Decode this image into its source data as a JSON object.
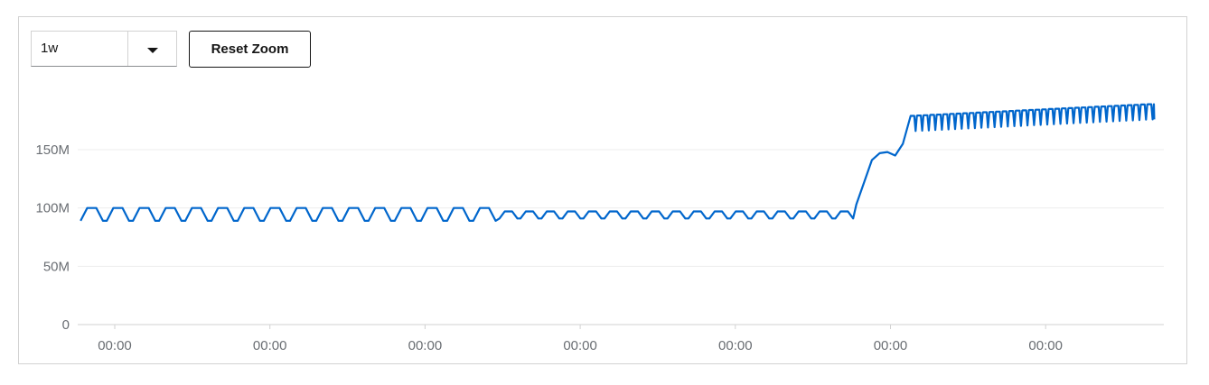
{
  "controls": {
    "range_value": "1w",
    "reset_label": "Reset Zoom"
  },
  "colors": {
    "series": "#0066cc",
    "grid": "#ededed",
    "text": "#6a6e73"
  },
  "chart_data": {
    "type": "line",
    "title": "",
    "xlabel": "",
    "ylabel": "",
    "ylim": [
      0,
      200000000
    ],
    "y_ticks": [
      {
        "value": 0,
        "label": "0"
      },
      {
        "value": 50000000,
        "label": "50M"
      },
      {
        "value": 100000000,
        "label": "100M"
      },
      {
        "value": 150000000,
        "label": "150M"
      }
    ],
    "x_tick_labels": [
      "00:00",
      "00:00",
      "00:00",
      "00:00",
      "00:00",
      "00:00",
      "00:00"
    ],
    "grid": true,
    "legend": "none",
    "series": [
      {
        "color": "#0066cc",
        "segments": [
          {
            "days": 2.7,
            "cycles": 16,
            "lo": 89000000,
            "hi": 100000000
          },
          {
            "days": 2.3,
            "cycles": 17,
            "lo": 91000000,
            "hi": 97000000
          }
        ],
        "step_values": [
          103000000,
          122000000,
          141000000,
          147000000,
          148000000,
          145000000,
          155000000
        ],
        "high_plateau": {
          "days": 3.8,
          "cycles": 37,
          "lo_start": 166000000,
          "lo_end": 176000000,
          "hi_start": 179000000,
          "hi_end": 189000000
        },
        "x_days_start": -0.22,
        "x_days_end": 6.7
      }
    ]
  }
}
